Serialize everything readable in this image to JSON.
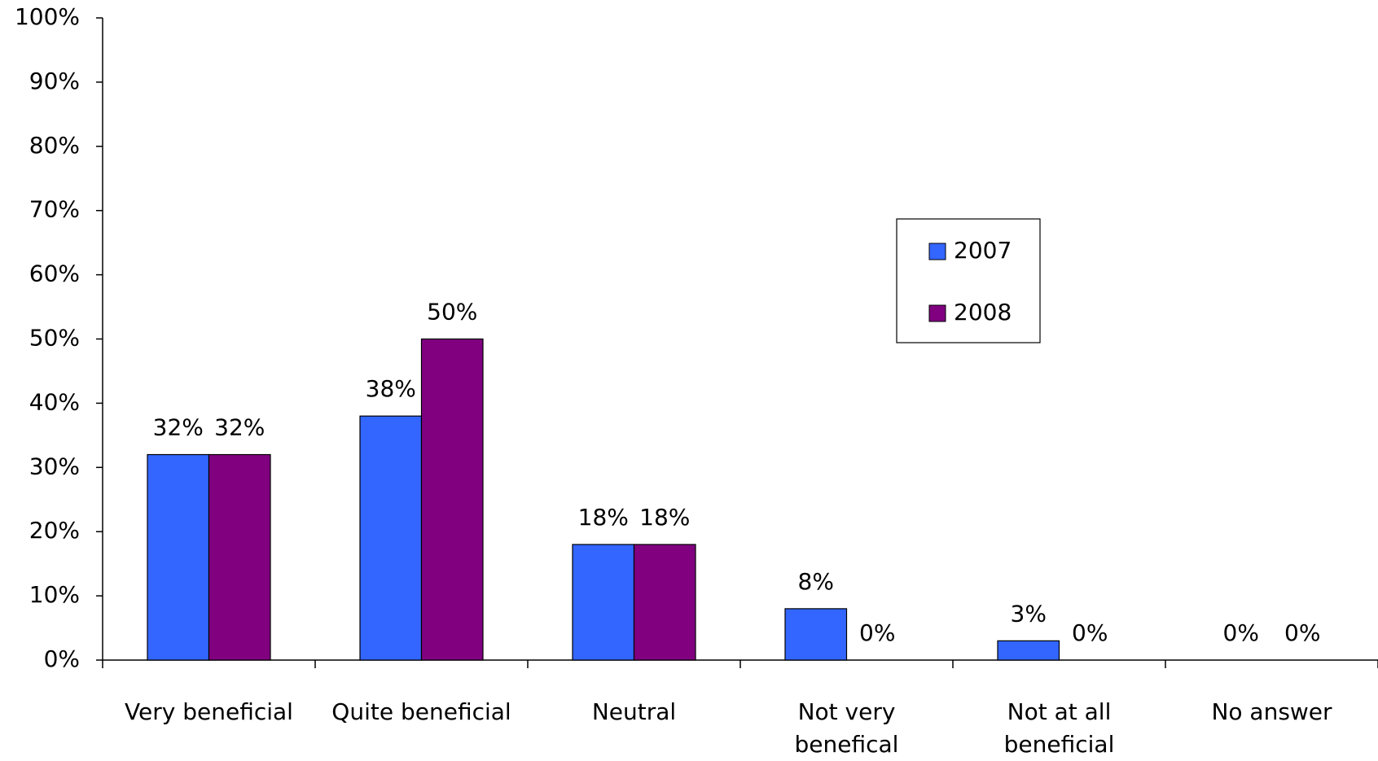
{
  "chart_data": {
    "type": "bar",
    "categories": [
      "Very beneficial",
      "Quite beneficial",
      "Neutral",
      "Not very benefical",
      "Not at all beneficial",
      "No answer"
    ],
    "series": [
      {
        "name": "2007",
        "color": "#3366ff",
        "values": [
          32,
          38,
          18,
          8,
          3,
          0
        ],
        "value_labels": [
          "32%",
          "38%",
          "18%",
          "8%",
          "3%",
          "0%"
        ]
      },
      {
        "name": "2008",
        "color": "#800080",
        "values": [
          32,
          50,
          18,
          0,
          0,
          0
        ],
        "value_labels": [
          "32%",
          "50%",
          "18%",
          "0%",
          "0%",
          "0%"
        ]
      }
    ],
    "ylim": [
      0,
      100
    ],
    "yticks": [
      {
        "value": 0,
        "label": "0%"
      },
      {
        "value": 10,
        "label": "10%"
      },
      {
        "value": 20,
        "label": "20%"
      },
      {
        "value": 30,
        "label": "30%"
      },
      {
        "value": 40,
        "label": "40%"
      },
      {
        "value": 50,
        "label": "50%"
      },
      {
        "value": 60,
        "label": "60%"
      },
      {
        "value": 70,
        "label": "70%"
      },
      {
        "value": 80,
        "label": "80%"
      },
      {
        "value": 90,
        "label": "90%"
      },
      {
        "value": 100,
        "label": "100%"
      }
    ],
    "grid": false,
    "legend": "right"
  }
}
